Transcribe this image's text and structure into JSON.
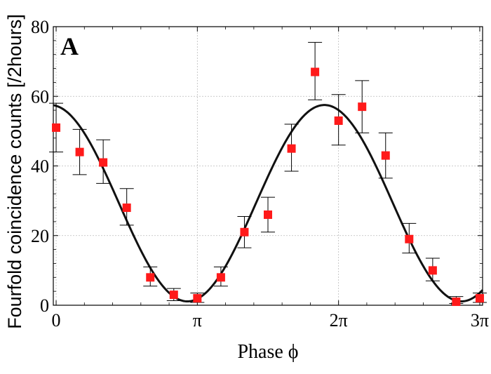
{
  "chart_data": {
    "type": "scatter",
    "panel_label": "A",
    "xlabel": "Phase ϕ",
    "ylabel": "Fourfold coincidence counts [/2hours]",
    "xlim_pi": [
      -0.02,
      3.02
    ],
    "ylim": [
      0,
      80
    ],
    "x_ticks": [
      {
        "value_pi": 0,
        "label": "0"
      },
      {
        "value_pi": 1,
        "label": "π"
      },
      {
        "value_pi": 2,
        "label": "2π"
      },
      {
        "value_pi": 3,
        "label": "3π"
      }
    ],
    "y_ticks": [
      0,
      20,
      40,
      60,
      80
    ],
    "grid": true,
    "marker_color": "#ff1a1a",
    "fit_color": "#111111",
    "data_series": {
      "x_pi": [
        0,
        0.1667,
        0.3333,
        0.5,
        0.6667,
        0.8333,
        1.0,
        1.1667,
        1.3333,
        1.5,
        1.6667,
        1.8333,
        2.0,
        2.1667,
        2.3333,
        2.5,
        2.6667,
        2.8333,
        3.0
      ],
      "y": [
        51,
        44,
        41,
        28,
        8,
        3,
        2,
        8,
        21,
        26,
        45,
        67,
        53,
        57,
        43,
        19,
        10,
        1,
        2
      ],
      "y_err_low": [
        44,
        37.5,
        35,
        23,
        5.5,
        1.3,
        0.8,
        5.5,
        16.5,
        21,
        38.5,
        59,
        46,
        49.5,
        36.5,
        15,
        7,
        0.5,
        0.8
      ],
      "y_err_high": [
        58,
        50.5,
        47.5,
        33.5,
        11,
        4.8,
        3.5,
        11,
        25.5,
        31,
        52,
        75.5,
        60.5,
        64.5,
        49.5,
        23.5,
        13.5,
        2.5,
        3.5
      ]
    },
    "fit": {
      "type": "cosine",
      "offset": 29.3,
      "amplitude": 28.2,
      "period_pi": 1.94,
      "phase_pi": -0.04
    }
  }
}
